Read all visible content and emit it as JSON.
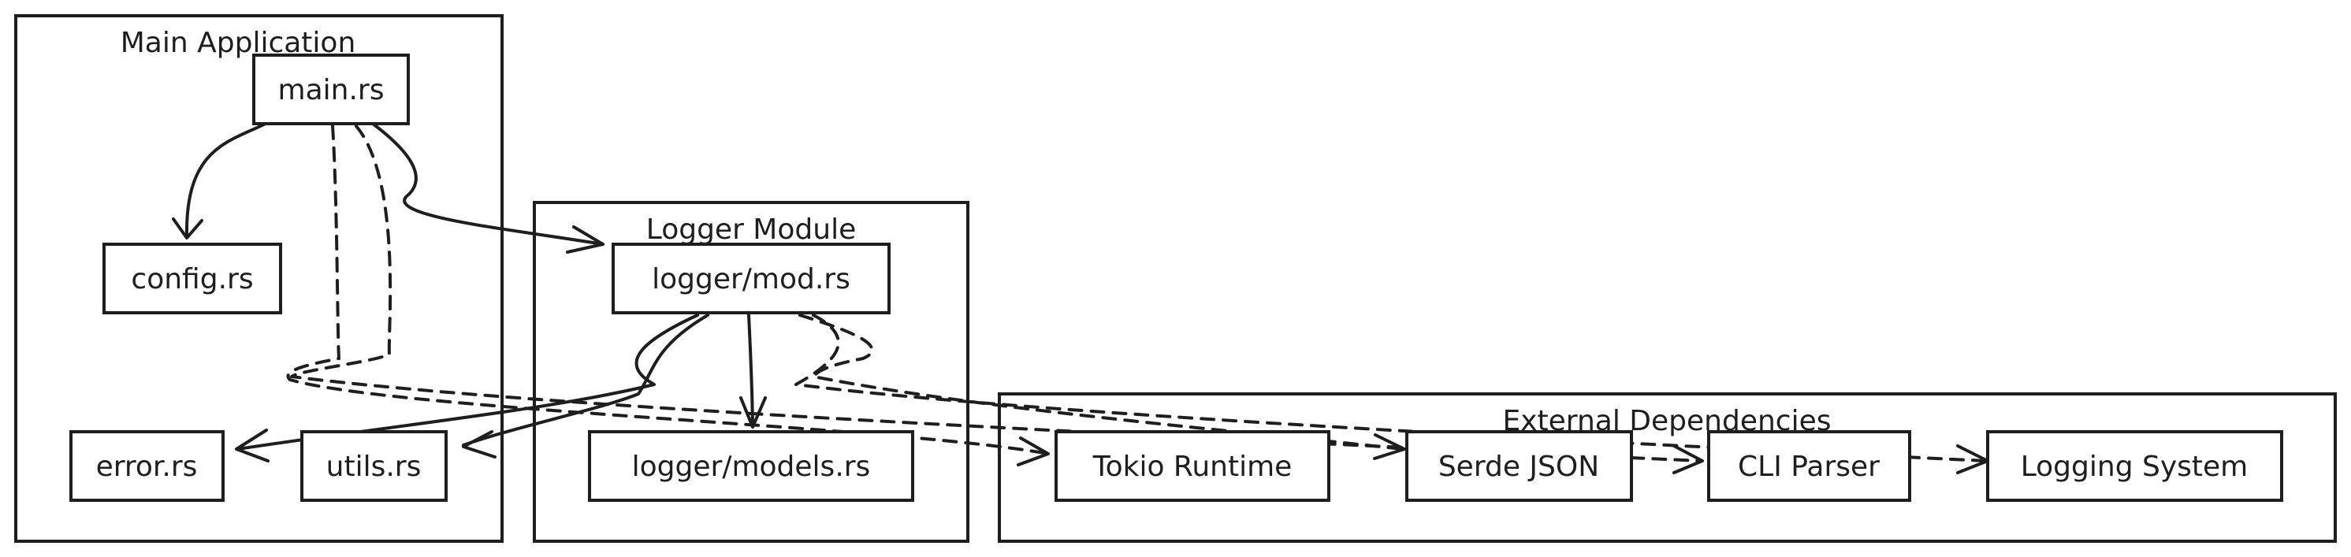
{
  "groups": {
    "main": {
      "title": "Main Application"
    },
    "logger": {
      "title": "Logger Module"
    },
    "external": {
      "title": "External Dependencies"
    }
  },
  "nodes": {
    "main_rs": "main.rs",
    "config_rs": "config.rs",
    "error_rs": "error.rs",
    "utils_rs": "utils.rs",
    "logger_mod": "logger/mod.rs",
    "logger_models": "logger/models.rs",
    "tokio": "Tokio Runtime",
    "serde": "Serde JSON",
    "cli": "CLI Parser",
    "logging": "Logging System"
  },
  "edges": [
    {
      "from": "main.rs",
      "to": "config.rs",
      "style": "solid"
    },
    {
      "from": "main.rs",
      "to": "logger/mod.rs",
      "style": "solid"
    },
    {
      "from": "main.rs",
      "to": "Tokio Runtime",
      "style": "dashed"
    },
    {
      "from": "main.rs",
      "to": "CLI Parser",
      "style": "dashed"
    },
    {
      "from": "logger/mod.rs",
      "to": "error.rs",
      "style": "solid"
    },
    {
      "from": "logger/mod.rs",
      "to": "utils.rs",
      "style": "solid"
    },
    {
      "from": "logger/mod.rs",
      "to": "logger/models.rs",
      "style": "solid"
    },
    {
      "from": "logger/mod.rs",
      "to": "Serde JSON",
      "style": "dashed"
    },
    {
      "from": "logger/mod.rs",
      "to": "Logging System",
      "style": "dashed"
    }
  ],
  "colors": {
    "stroke": "#1e1e1e",
    "background": "#ffffff"
  }
}
